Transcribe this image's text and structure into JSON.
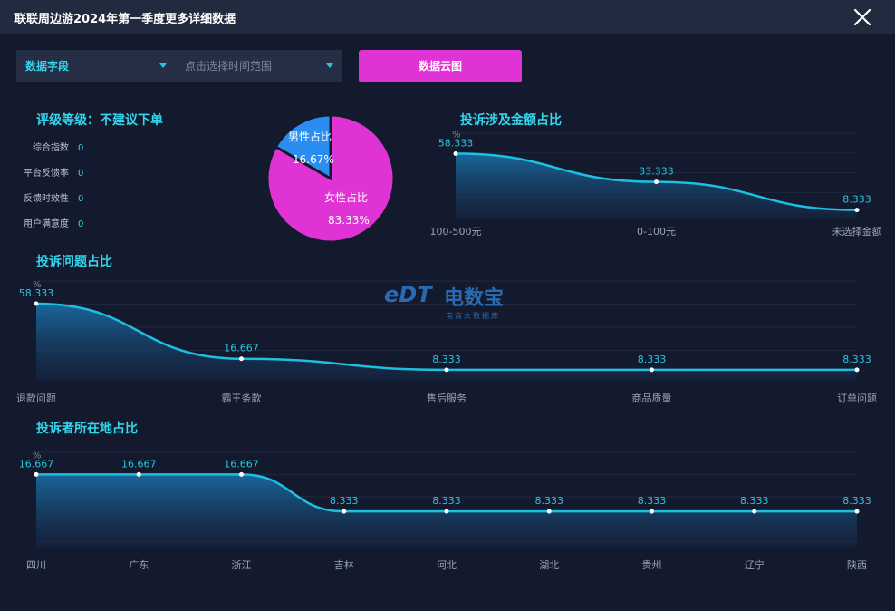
{
  "window": {
    "title": "联联周边游2024年第一季度更多详细数据"
  },
  "controls": {
    "field_select": "数据字段",
    "time_placeholder": "点击选择时间范围",
    "cloud_button": "数据云图"
  },
  "rating": {
    "title": "评级等级：不建议下单",
    "metrics": [
      {
        "label": "综合指数",
        "value": "0"
      },
      {
        "label": "平台反馈率",
        "value": "0"
      },
      {
        "label": "反馈时效性",
        "value": "0"
      },
      {
        "label": "用户满意度",
        "value": "0"
      }
    ]
  },
  "watermark": {
    "logo": "eDT",
    "main": "电数宝",
    "sub": "电商大数据库"
  },
  "colors": {
    "accent": "#33d6ee",
    "male": "#2c8df0",
    "female": "#e033d6",
    "line": "#1cc0e0"
  },
  "chart_data": [
    {
      "type": "pie",
      "title": "",
      "slices": [
        {
          "label": "男性占比",
          "value": 16.67,
          "display": "16.67%"
        },
        {
          "label": "女性占比",
          "value": 83.33,
          "display": "83.33%"
        }
      ]
    },
    {
      "type": "area",
      "title": "投诉涉及金额占比",
      "unit": "%",
      "categories": [
        "100-500元",
        "0-100元",
        "未选择金额"
      ],
      "values": [
        58.333,
        33.333,
        8.333
      ],
      "ylim": [
        0,
        70
      ]
    },
    {
      "type": "area",
      "title": "投诉问题占比",
      "unit": "%",
      "categories": [
        "退款问题",
        "霸王条款",
        "售后服务",
        "商品质量",
        "订单问题"
      ],
      "values": [
        58.333,
        16.667,
        8.333,
        8.333,
        8.333
      ],
      "ylim": [
        0,
        70
      ]
    },
    {
      "type": "area",
      "title": "投诉者所在地占比",
      "unit": "%",
      "categories": [
        "四川",
        "广东",
        "浙江",
        "吉林",
        "河北",
        "湖北",
        "贵州",
        "辽宁",
        "陕西"
      ],
      "values": [
        16.667,
        16.667,
        16.667,
        8.333,
        8.333,
        8.333,
        8.333,
        8.333,
        8.333
      ],
      "ylim": [
        0,
        20
      ]
    }
  ]
}
